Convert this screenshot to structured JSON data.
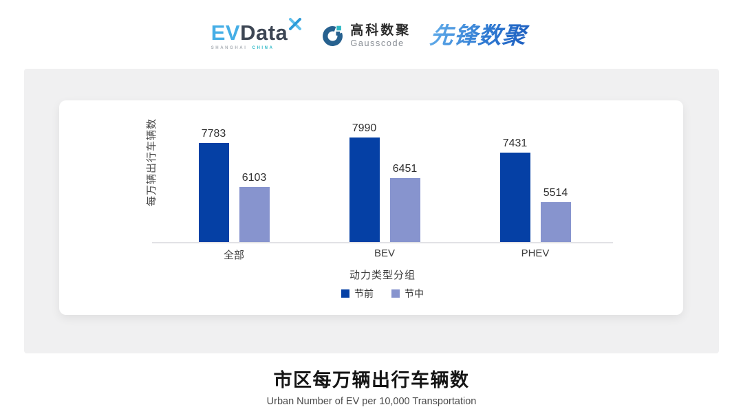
{
  "header": {
    "evdata": {
      "ev": "EV",
      "data": "Data",
      "sub_left": "SHANGHAI",
      "sub_right": "CHINA"
    },
    "gausscode": {
      "cn": "高科数聚",
      "en": "Gausscode"
    },
    "pioneer": {
      "text": "先锋数聚"
    }
  },
  "chart_data": {
    "type": "bar",
    "title": "市区每万辆出行车辆数",
    "subtitle": "Urban Number of EV per 10,000 Transportation",
    "categories": [
      "全部",
      "BEV",
      "PHEV"
    ],
    "series": [
      {
        "name": "节前",
        "color": "#0540a5",
        "values": [
          7783,
          7990,
          7431
        ]
      },
      {
        "name": "节中",
        "color": "#8794ce",
        "values": [
          6103,
          6451,
          5514
        ]
      }
    ],
    "xlabel": "动力类型分组",
    "ylabel": "每万辆出行车辆数",
    "ylim": [
      4000,
      8500
    ],
    "grid": false,
    "legend_position": "bottom"
  },
  "colors": {
    "series_dark": "#0540a5",
    "series_light": "#8794ce",
    "panel_bg": "#f0f0f1",
    "axis_line": "#e2e2e5",
    "evdata_ev": "#45aee6",
    "evdata_data": "#3d4654",
    "evdata_china": "#2fb9c7",
    "gausscode_mark": "#27618f",
    "gausscode_accent": "#2cb8c4",
    "pioneer_blue": "#2f7ad2"
  }
}
